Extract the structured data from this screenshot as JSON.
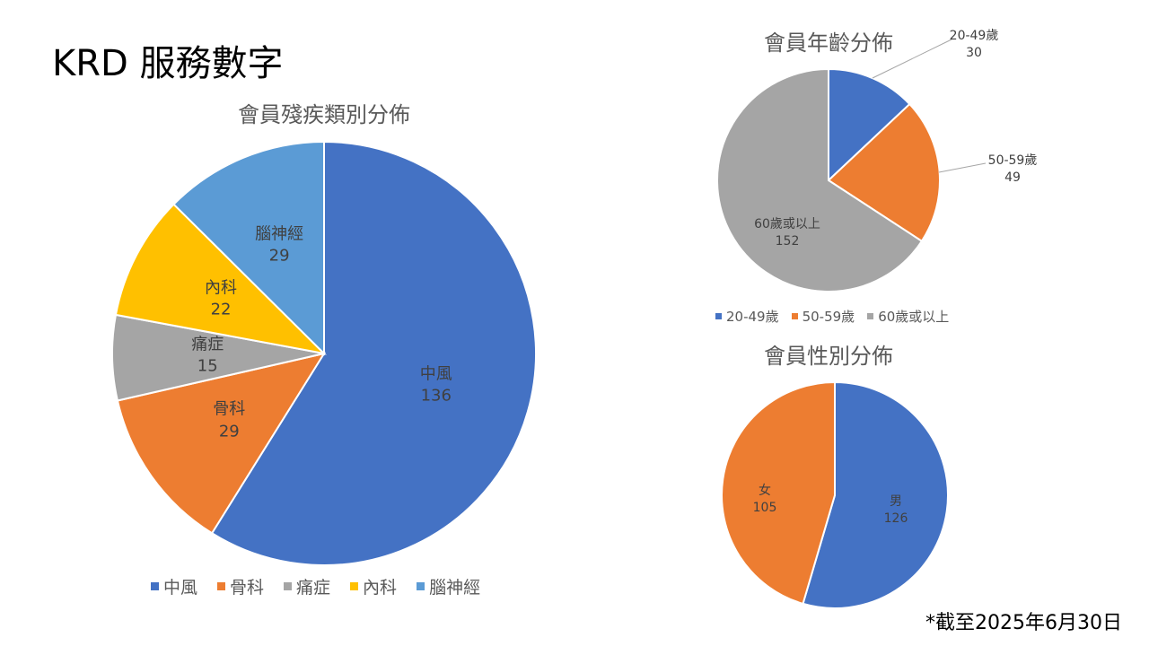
{
  "page": {
    "title": "KRD 服務數字",
    "footnote": "*截至2025年6月30日"
  },
  "chart_data": [
    {
      "id": "disability",
      "type": "pie",
      "title": "會員殘疾類別分佈",
      "categories": [
        "中風",
        "骨科",
        "痛症",
        "內科",
        "腦神經"
      ],
      "values": [
        136,
        29,
        15,
        22,
        29
      ],
      "colors": [
        "#4472C4",
        "#ED7D31",
        "#A5A5A5",
        "#FFC000",
        "#5B9BD5"
      ],
      "legend": "bottom"
    },
    {
      "id": "age",
      "type": "pie",
      "title": "會員年齡分佈",
      "categories": [
        "20-49歲",
        "50-59歲",
        "60歲或以上"
      ],
      "values": [
        30,
        49,
        152
      ],
      "colors": [
        "#4472C4",
        "#ED7D31",
        "#A5A5A5"
      ],
      "legend": "bottom"
    },
    {
      "id": "gender",
      "type": "pie",
      "title": "會員性別分佈",
      "categories": [
        "男",
        "女"
      ],
      "values": [
        126,
        105
      ],
      "colors": [
        "#4472C4",
        "#ED7D31"
      ],
      "legend": "none"
    }
  ]
}
